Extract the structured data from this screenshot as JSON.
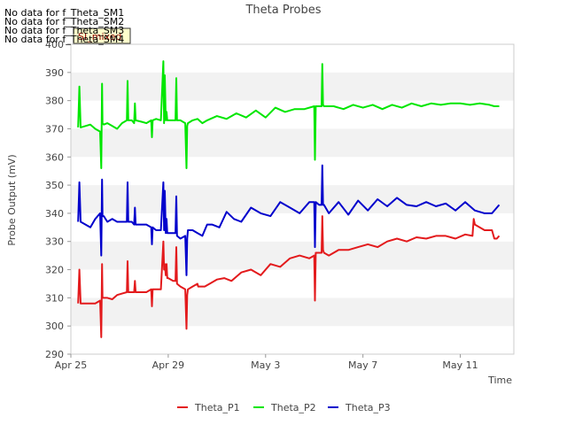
{
  "chart_data": {
    "type": "line",
    "title": "Theta Probes",
    "xlabel": "Time",
    "ylabel": "Probe Output (mV)",
    "ylim": [
      290,
      400
    ],
    "yticks": [
      290,
      300,
      310,
      320,
      330,
      340,
      350,
      360,
      370,
      380,
      390,
      400
    ],
    "xlim": [
      0,
      18.2
    ],
    "xticks": [
      {
        "day": 0,
        "label": "Apr 25"
      },
      {
        "day": 4,
        "label": "Apr 29"
      },
      {
        "day": 8,
        "label": "May 3"
      },
      {
        "day": 12,
        "label": "May 7"
      },
      {
        "day": 16,
        "label": "May 11"
      }
    ],
    "grid": "horizontal bands",
    "no_data_messages": [
      "No data for f_Theta_SM1",
      "No data for f_Theta_SM2",
      "No data for f_Theta_SM3",
      "No data for f_Theta_SM4"
    ],
    "badge": "SI_mixed",
    "legend_position": "bottom",
    "series": [
      {
        "name": "Theta_P1",
        "color": "#e31a1c",
        "x": [
          0.3,
          0.35,
          0.4,
          0.6,
          0.8,
          1.0,
          1.2,
          1.25,
          1.28,
          1.3,
          1.35,
          1.5,
          1.7,
          1.9,
          2.1,
          2.3,
          2.33,
          2.36,
          2.5,
          2.6,
          2.63,
          2.66,
          2.9,
          3.1,
          3.3,
          3.33,
          3.36,
          3.5,
          3.7,
          3.8,
          3.83,
          3.86,
          3.9,
          3.93,
          3.96,
          4.0,
          4.2,
          4.3,
          4.33,
          4.36,
          4.5,
          4.7,
          4.75,
          4.78,
          4.81,
          5.0,
          5.2,
          5.23,
          5.26,
          5.3,
          5.5,
          5.7,
          6.0,
          6.3,
          6.6,
          7.0,
          7.4,
          7.8,
          8.2,
          8.6,
          9.0,
          9.4,
          9.8,
          10.0,
          10.03,
          10.06,
          10.2,
          10.3,
          10.33,
          10.36,
          10.4,
          10.6,
          11.0,
          11.4,
          11.8,
          12.2,
          12.6,
          13.0,
          13.4,
          13.8,
          14.2,
          14.6,
          15.0,
          15.4,
          15.8,
          16.2,
          16.5,
          16.55,
          16.6,
          16.7,
          17.0,
          17.3,
          17.4,
          17.5,
          17.6
        ],
        "y": [
          308,
          320,
          308,
          308,
          308,
          308,
          309,
          296,
          322,
          310,
          310,
          310,
          309.5,
          311,
          311.5,
          312,
          323,
          312,
          312,
          312,
          316,
          312,
          312,
          312,
          313,
          307,
          313,
          313,
          313,
          330,
          320,
          322,
          318,
          322,
          317,
          317,
          316,
          316,
          328,
          315,
          314,
          313,
          299,
          311,
          313,
          314,
          315,
          314,
          314,
          314,
          314,
          315,
          316.5,
          317,
          316,
          319,
          320,
          318,
          322,
          321,
          324,
          325,
          324,
          325,
          309,
          326,
          326,
          326,
          339,
          327,
          326,
          325,
          327,
          327,
          328,
          329,
          328,
          330,
          331,
          330,
          331.5,
          331,
          332,
          332,
          331,
          332.5,
          332,
          338,
          336,
          335.5,
          334,
          334,
          331,
          331,
          332
        ]
      },
      {
        "name": "Theta_P2",
        "color": "#00e600",
        "x": [
          0.3,
          0.35,
          0.4,
          0.6,
          0.8,
          1.0,
          1.2,
          1.25,
          1.28,
          1.3,
          1.35,
          1.5,
          1.7,
          1.9,
          2.1,
          2.3,
          2.33,
          2.36,
          2.5,
          2.6,
          2.63,
          2.66,
          2.9,
          3.1,
          3.3,
          3.33,
          3.36,
          3.5,
          3.7,
          3.8,
          3.83,
          3.86,
          3.9,
          3.93,
          3.96,
          4.0,
          4.2,
          4.3,
          4.33,
          4.36,
          4.5,
          4.7,
          4.75,
          4.78,
          4.81,
          5.0,
          5.2,
          5.4,
          5.6,
          6.0,
          6.4,
          6.8,
          7.2,
          7.6,
          8.0,
          8.4,
          8.8,
          9.2,
          9.6,
          10.0,
          10.03,
          10.06,
          10.2,
          10.3,
          10.33,
          10.36,
          10.4,
          10.8,
          11.2,
          11.6,
          12.0,
          12.4,
          12.8,
          13.2,
          13.6,
          14.0,
          14.4,
          14.8,
          15.2,
          15.6,
          16.0,
          16.4,
          16.8,
          17.2,
          17.4,
          17.6
        ],
        "y": [
          370.5,
          385,
          370.5,
          371,
          371.5,
          370,
          369,
          356,
          386,
          372,
          371.5,
          372,
          371,
          370,
          372,
          373,
          387,
          373,
          373,
          372,
          379,
          373,
          372.5,
          372,
          373,
          367,
          373,
          373.5,
          373,
          394,
          372,
          389,
          373,
          376,
          373,
          373,
          373,
          373,
          388,
          373,
          373,
          372,
          356,
          371,
          372,
          373,
          373.5,
          372,
          373,
          374.5,
          373.5,
          375.5,
          374,
          376.5,
          374,
          377.5,
          376,
          377,
          377,
          378,
          359,
          378,
          378,
          378,
          393,
          378.5,
          378,
          378,
          377,
          378.5,
          377.5,
          378.5,
          377,
          378.5,
          377.5,
          379,
          378,
          379,
          378.5,
          379,
          379,
          378.5,
          379,
          378.5,
          378,
          378
        ]
      },
      {
        "name": "Theta_P3",
        "color": "#0000cc",
        "x": [
          0.3,
          0.35,
          0.4,
          0.6,
          0.8,
          1.0,
          1.2,
          1.25,
          1.28,
          1.3,
          1.35,
          1.5,
          1.7,
          1.9,
          2.1,
          2.3,
          2.33,
          2.36,
          2.5,
          2.6,
          2.63,
          2.66,
          2.9,
          3.1,
          3.3,
          3.33,
          3.36,
          3.5,
          3.7,
          3.8,
          3.83,
          3.86,
          3.9,
          3.93,
          3.96,
          4.0,
          4.2,
          4.3,
          4.33,
          4.36,
          4.5,
          4.7,
          4.75,
          4.78,
          4.81,
          5.0,
          5.2,
          5.4,
          5.6,
          5.8,
          6.1,
          6.4,
          6.7,
          7.0,
          7.4,
          7.8,
          8.2,
          8.6,
          9.0,
          9.4,
          9.8,
          10.0,
          10.03,
          10.06,
          10.2,
          10.3,
          10.33,
          10.36,
          10.4,
          10.6,
          11.0,
          11.4,
          11.8,
          12.2,
          12.6,
          13.0,
          13.4,
          13.8,
          14.2,
          14.6,
          15.0,
          15.4,
          15.8,
          16.2,
          16.6,
          17.0,
          17.3,
          17.5,
          17.6
        ],
        "y": [
          337,
          351,
          337,
          336,
          335,
          338,
          340,
          325,
          352,
          339,
          339,
          337,
          338,
          337,
          337,
          337,
          351,
          337,
          337,
          336,
          342,
          336,
          336,
          336,
          335,
          329,
          335,
          334,
          334,
          351,
          334,
          348,
          333,
          338,
          333,
          333,
          333,
          333,
          346,
          332,
          331,
          332,
          318,
          331,
          334,
          334,
          333,
          332,
          336,
          336,
          335,
          340.5,
          338,
          337,
          342,
          340,
          339,
          344,
          342,
          340,
          344,
          344,
          328,
          344,
          343,
          343,
          357,
          343,
          343,
          340,
          344,
          339.5,
          344.5,
          341,
          345,
          342.5,
          345.5,
          343,
          342.5,
          344,
          342.5,
          343.5,
          341,
          344,
          341,
          340,
          340,
          342,
          343
        ]
      }
    ]
  }
}
